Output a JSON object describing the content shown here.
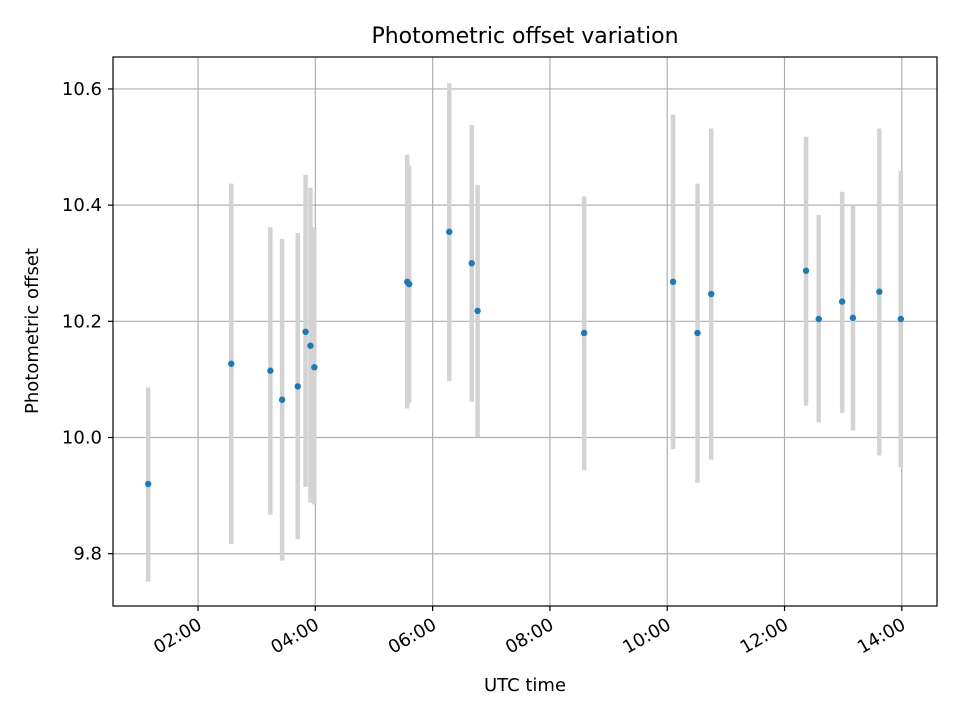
{
  "chart_data": {
    "type": "scatter",
    "title": "Photometric offset variation",
    "xlabel": "UTC time",
    "ylabel": "Photometric offset",
    "x_tick_labels": [
      "02:00",
      "04:00",
      "06:00",
      "08:00",
      "10:00",
      "12:00",
      "14:00"
    ],
    "y_tick_labels": [
      "9.8",
      "10.0",
      "10.2",
      "10.4",
      "10.6"
    ],
    "xlim": [
      "00:33",
      "14:36"
    ],
    "ylim": [
      9.71,
      10.655
    ],
    "grid": true,
    "point_color": "#1f77b4",
    "errorbar_color": "#d3d3d3",
    "series": [
      {
        "points": [
          {
            "x": "01:09",
            "y": 9.92,
            "lo": 9.752,
            "hi": 10.086
          },
          {
            "x": "02:34",
            "y": 10.127,
            "lo": 9.817,
            "hi": 10.437
          },
          {
            "x": "03:14",
            "y": 10.115,
            "lo": 9.867,
            "hi": 10.362
          },
          {
            "x": "03:26",
            "y": 10.065,
            "lo": 9.788,
            "hi": 10.342
          },
          {
            "x": "03:42",
            "y": 10.088,
            "lo": 9.825,
            "hi": 10.352
          },
          {
            "x": "03:50",
            "y": 10.182,
            "lo": 9.915,
            "hi": 10.452
          },
          {
            "x": "03:55",
            "y": 10.158,
            "lo": 9.888,
            "hi": 10.43
          },
          {
            "x": "03:59",
            "y": 10.121,
            "lo": 9.885,
            "hi": 10.362
          },
          {
            "x": "05:34",
            "y": 10.268,
            "lo": 10.05,
            "hi": 10.487
          },
          {
            "x": "05:36",
            "y": 10.264,
            "lo": 10.06,
            "hi": 10.468
          },
          {
            "x": "06:17",
            "y": 10.354,
            "lo": 10.097,
            "hi": 10.61
          },
          {
            "x": "06:40",
            "y": 10.3,
            "lo": 10.062,
            "hi": 10.538
          },
          {
            "x": "06:46",
            "y": 10.218,
            "lo": 10.001,
            "hi": 10.435
          },
          {
            "x": "08:35",
            "y": 10.18,
            "lo": 9.944,
            "hi": 10.415
          },
          {
            "x": "10:06",
            "y": 10.268,
            "lo": 9.98,
            "hi": 10.556
          },
          {
            "x": "10:31",
            "y": 10.18,
            "lo": 9.922,
            "hi": 10.437
          },
          {
            "x": "10:45",
            "y": 10.247,
            "lo": 9.962,
            "hi": 10.532
          },
          {
            "x": "12:22",
            "y": 10.287,
            "lo": 10.055,
            "hi": 10.518
          },
          {
            "x": "12:35",
            "y": 10.204,
            "lo": 10.026,
            "hi": 10.383
          },
          {
            "x": "12:59",
            "y": 10.234,
            "lo": 10.042,
            "hi": 10.423
          },
          {
            "x": "13:10",
            "y": 10.206,
            "lo": 10.012,
            "hi": 10.4
          },
          {
            "x": "13:37",
            "y": 10.251,
            "lo": 9.969,
            "hi": 10.532
          },
          {
            "x": "13:59",
            "y": 10.204,
            "lo": 9.949,
            "hi": 10.459
          }
        ]
      }
    ]
  }
}
